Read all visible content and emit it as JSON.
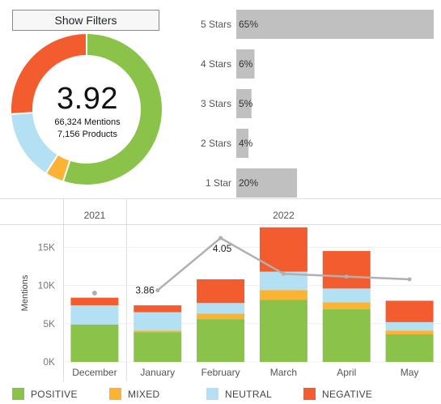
{
  "filters": {
    "button_label": "Show Filters"
  },
  "summary": {
    "score": "3.92",
    "mentions": "66,324 Mentions",
    "products": "7,156 Products"
  },
  "colors": {
    "positive": "#8bc34a",
    "mixed": "#fbb335",
    "neutral": "#b3e0f2",
    "negative": "#f25c2f",
    "rating_bar": "#c0c0c0",
    "trend_line": "#b0b0b0"
  },
  "chart_data": [
    {
      "type": "pie",
      "subtype": "donut",
      "series": [
        {
          "name": "POSITIVE",
          "value": 0.55
        },
        {
          "name": "MIXED",
          "value": 0.04
        },
        {
          "name": "NEUTRAL",
          "value": 0.15
        },
        {
          "name": "NEGATIVE",
          "value": 0.26
        }
      ]
    },
    {
      "type": "bar",
      "orientation": "horizontal",
      "categories": [
        "5 Stars",
        "4 Stars",
        "3 Stars",
        "2 Stars",
        "1 Star"
      ],
      "values": [
        65,
        6,
        5,
        4,
        20
      ],
      "labels": [
        "65%",
        "6%",
        "5%",
        "4%",
        "20%"
      ],
      "xlim": [
        0,
        65
      ]
    },
    {
      "type": "bar",
      "stacked": true,
      "year_groups": [
        {
          "label": "2021",
          "span": 1
        },
        {
          "label": "2022",
          "span": 5
        }
      ],
      "categories": [
        "December",
        "January",
        "February",
        "March",
        "April",
        "May"
      ],
      "series": [
        {
          "name": "POSITIVE",
          "values": [
            4900,
            3900,
            5600,
            8100,
            6900,
            3600
          ]
        },
        {
          "name": "MIXED",
          "values": [
            0,
            200,
            700,
            1300,
            900,
            500
          ]
        },
        {
          "name": "NEUTRAL",
          "values": [
            2500,
            2400,
            1400,
            2400,
            1800,
            1100
          ]
        },
        {
          "name": "NEGATIVE",
          "values": [
            1000,
            900,
            3100,
            5800,
            4900,
            2800
          ]
        }
      ],
      "ylabel": "Mentions",
      "yticks": [
        "0K",
        "5K",
        "10K",
        "15K"
      ],
      "ylim": [
        0,
        18000
      ],
      "rating_line": {
        "values": [
          3.85,
          3.86,
          4.05,
          3.92,
          3.91,
          3.9
        ],
        "labels": [
          "",
          "3.86",
          "4.05",
          "",
          "",
          ""
        ],
        "ylim": [
          3.6,
          4.1
        ]
      }
    }
  ],
  "legend": [
    {
      "name": "POSITIVE",
      "color": "#8bc34a"
    },
    {
      "name": "MIXED",
      "color": "#fbb335"
    },
    {
      "name": "NEUTRAL",
      "color": "#b3e0f2"
    },
    {
      "name": "NEGATIVE",
      "color": "#f25c2f"
    }
  ]
}
